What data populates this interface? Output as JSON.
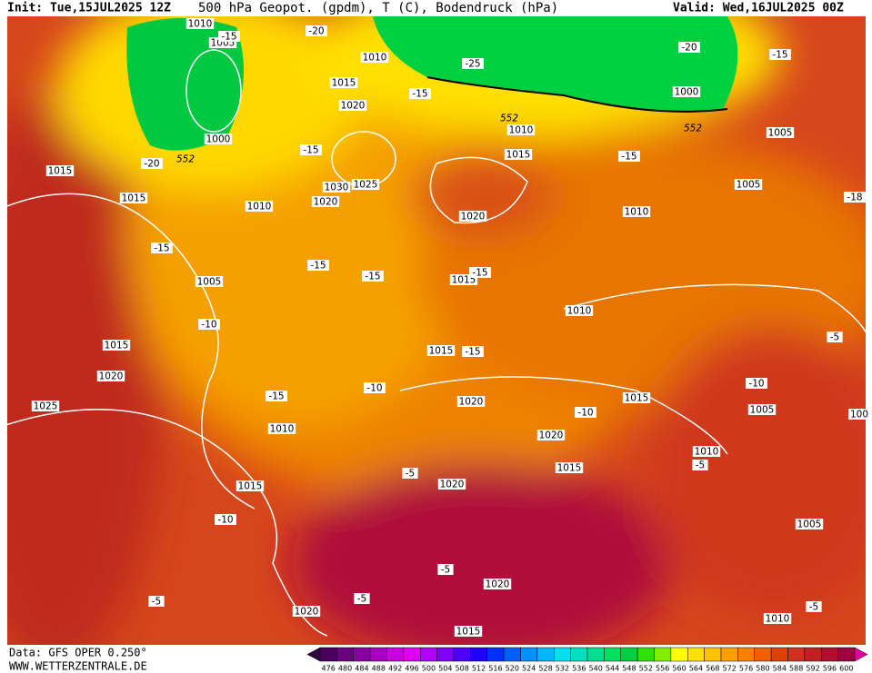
{
  "header": {
    "init": "Init: Tue,15JUL2025 12Z",
    "title": "500 hPa Geopot. (gpdm), T (C), Bodendruck (hPa)",
    "valid": "Valid: Wed,16JUL2025 00Z"
  },
  "footer": {
    "data": "Data: GFS OPER 0.250°",
    "site": "WWW.WETTERZENTRALE.DE"
  },
  "colorbar": {
    "ticks": [
      476,
      480,
      484,
      488,
      492,
      496,
      500,
      504,
      508,
      512,
      516,
      520,
      524,
      528,
      532,
      536,
      540,
      544,
      548,
      552,
      556,
      560,
      564,
      568,
      572,
      576,
      580,
      584,
      588,
      592,
      596,
      600
    ],
    "colors": [
      "#4b0060",
      "#6a0080",
      "#8800a0",
      "#a800c0",
      "#c800e0",
      "#e000f0",
      "#b000ff",
      "#8000ff",
      "#5000ff",
      "#2000ff",
      "#0030ff",
      "#0060ff",
      "#0090ff",
      "#00b8ff",
      "#00e0f0",
      "#00e0c0",
      "#00e090",
      "#00e060",
      "#00d040",
      "#30e000",
      "#80f000",
      "#ffff00",
      "#ffe000",
      "#ffc000",
      "#ffa000",
      "#ff8000",
      "#f06000",
      "#e04000",
      "#d03020",
      "#c02020",
      "#b01030",
      "#a00040"
    ]
  },
  "map": {
    "labels": [
      "1010",
      "1005",
      "1015",
      "1010",
      "1020",
      "1000",
      "1015",
      "1015",
      "1010",
      "1030",
      "1025",
      "1020",
      "1020",
      "1015",
      "1010",
      "1010",
      "1005",
      "1005",
      "1000",
      "1005",
      "1015",
      "1010",
      "1015",
      "1020",
      "1025",
      "1015",
      "1020",
      "1015",
      "1005",
      "1010",
      "1020",
      "1010",
      "1015",
      "1015",
      "1020",
      "1005",
      "1020",
      "1020",
      "1015",
      "1010",
      "100",
      "-20",
      "-15",
      "-25",
      "-20",
      "-15",
      "-15",
      "-15",
      "-15",
      "-20",
      "-18",
      "-15",
      "-15",
      "-15",
      "-15",
      "-10",
      "-15",
      "-15",
      "-10",
      "-10",
      "-5",
      "-10",
      "-5",
      "-5",
      "-10",
      "-5",
      "-5",
      "-5",
      "-5",
      "552",
      "552",
      "552"
    ]
  }
}
